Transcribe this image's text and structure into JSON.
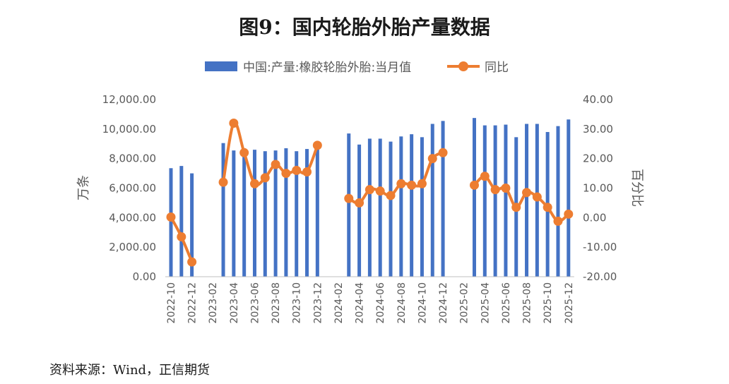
{
  "chart_data": {
    "type": "bar+line",
    "title": "图9：国内轮胎外胎产量数据",
    "y_left_label": "万条",
    "y_right_label": "百分比",
    "y_left_range": [
      0,
      12000
    ],
    "y_right_range": [
      -20,
      40
    ],
    "y_left_ticks": [
      "0.00",
      "2,000.00",
      "4,000.00",
      "6,000.00",
      "8,000.00",
      "10,000.00",
      "12,000.00"
    ],
    "y_right_ticks": [
      "-20.00",
      "-10.00",
      "0.00",
      "10.00",
      "20.00",
      "30.00",
      "40.00"
    ],
    "legend_placement": "top",
    "grid": false,
    "categories": [
      "2022-10",
      "2022-11",
      "2022-12",
      "2023-01",
      "2023-02",
      "2023-03",
      "2023-04",
      "2023-05",
      "2023-06",
      "2023-07",
      "2023-08",
      "2023-09",
      "2023-10",
      "2023-11",
      "2023-12",
      "2024-01",
      "2024-02",
      "2024-03",
      "2024-04",
      "2024-05",
      "2024-06",
      "2024-07",
      "2024-08",
      "2024-09",
      "2024-10",
      "2024-11",
      "2024-12",
      "2025-01",
      "2025-02",
      "2025-03",
      "2025-04",
      "2025-05",
      "2025-06",
      "2025-07",
      "2025-08",
      "2025-09",
      "2025-10",
      "2025-11",
      "2025-12"
    ],
    "x_tick_labels": [
      "2022-10",
      "2022-12",
      "2023-02",
      "2023-04",
      "2023-06",
      "2023-08",
      "2023-10",
      "2023-12",
      "2024-02",
      "2024-04",
      "2024-06",
      "2024-08",
      "2024-10",
      "2024-12",
      "2025-02",
      "2025-04",
      "2025-06",
      "2025-08",
      "2025-10",
      "2025-12"
    ],
    "series": [
      {
        "name": "中国:产量:橡胶轮胎外胎:当月值",
        "kind": "bar",
        "axis": "left",
        "color": "#4472C4",
        "values": [
          7350,
          7500,
          7000,
          null,
          null,
          9050,
          8550,
          8600,
          8600,
          8500,
          8550,
          8700,
          8500,
          8650,
          9000,
          null,
          null,
          9700,
          8950,
          9350,
          9350,
          9150,
          9500,
          9650,
          9450,
          10350,
          10550,
          null,
          null,
          10750,
          10250,
          10250,
          10300,
          9450,
          10350,
          10350,
          9800,
          10200,
          10650
        ]
      },
      {
        "name": "同比",
        "kind": "line",
        "axis": "right",
        "color": "#ED7D31",
        "values": [
          0.2,
          -6.5,
          -15,
          null,
          null,
          12,
          32,
          22,
          11.5,
          13.5,
          18,
          15,
          16,
          15.5,
          24.5,
          null,
          null,
          6.5,
          5,
          9.5,
          9,
          7.5,
          11.5,
          11,
          11.5,
          20,
          22,
          null,
          null,
          11,
          14,
          9.5,
          10,
          3.5,
          8.5,
          7,
          3.5,
          -1.2,
          1.2
        ]
      }
    ]
  },
  "source_text": "资料来源：Wind，正信期货"
}
